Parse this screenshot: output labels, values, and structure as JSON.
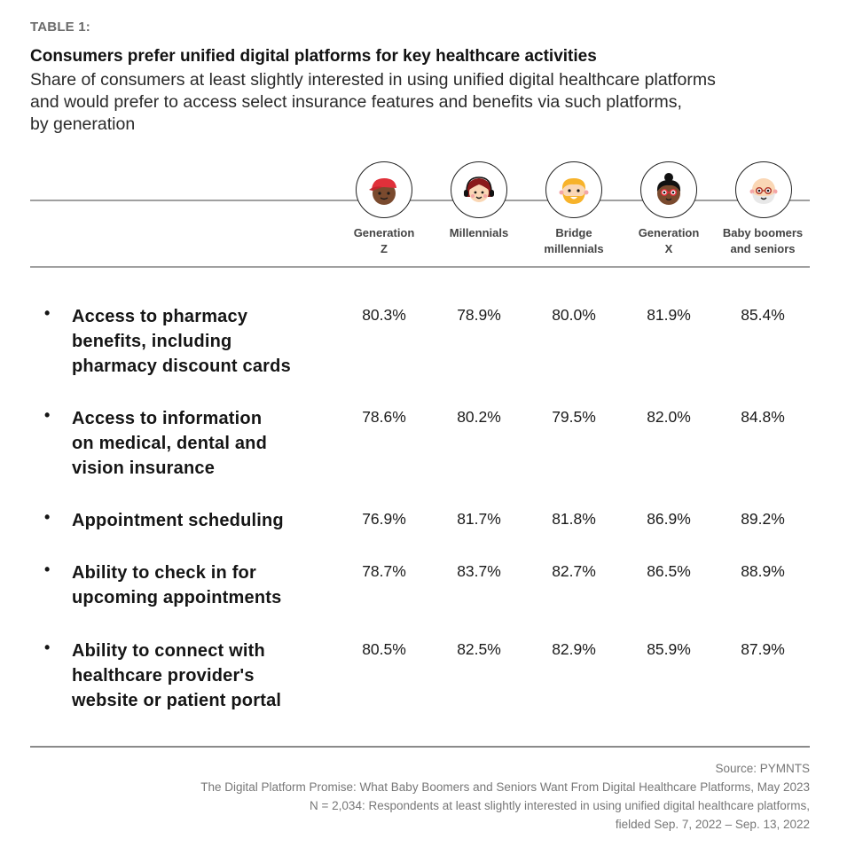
{
  "header": {
    "eyebrow": "TABLE 1:",
    "title": "Consumers prefer unified digital platforms for key healthcare activities",
    "subtitle_lines": [
      "Share of consumers at least slightly interested in using unified digital healthcare platforms",
      "and would prefer to access select insurance features and benefits via such platforms,",
      "by generation"
    ]
  },
  "columns": [
    {
      "label_lines": [
        "Generation",
        "Z"
      ],
      "icon": "gen-z-avatar-icon"
    },
    {
      "label_lines": [
        "Millennials",
        ""
      ],
      "icon": "millennial-avatar-icon"
    },
    {
      "label_lines": [
        "Bridge",
        "millennials"
      ],
      "icon": "bridge-millennial-avatar-icon"
    },
    {
      "label_lines": [
        "Generation",
        "X"
      ],
      "icon": "gen-x-avatar-icon"
    },
    {
      "label_lines": [
        "Baby boomers",
        "and seniors"
      ],
      "icon": "baby-boomer-avatar-icon"
    }
  ],
  "rows": [
    {
      "label_lines": [
        "Access to pharmacy",
        "benefits, including",
        "pharmacy discount cards"
      ],
      "values": [
        "80.3%",
        "78.9%",
        "80.0%",
        "81.9%",
        "85.4%"
      ]
    },
    {
      "label_lines": [
        "Access to information",
        "on medical, dental and",
        "vision insurance"
      ],
      "values": [
        "78.6%",
        "80.2%",
        "79.5%",
        "82.0%",
        "84.8%"
      ]
    },
    {
      "label_lines": [
        "Appointment scheduling"
      ],
      "values": [
        "76.9%",
        "81.7%",
        "81.8%",
        "86.9%",
        "89.2%"
      ]
    },
    {
      "label_lines": [
        "Ability to check in for",
        "upcoming appointments"
      ],
      "values": [
        "78.7%",
        "83.7%",
        "82.7%",
        "86.5%",
        "88.9%"
      ]
    },
    {
      "label_lines": [
        "Ability to connect with",
        "healthcare provider's",
        "website or patient portal"
      ],
      "values": [
        "80.5%",
        "82.5%",
        "82.9%",
        "85.9%",
        "87.9%"
      ]
    }
  ],
  "bullet": "•",
  "footer": {
    "lines": [
      "Source: PYMNTS",
      "The Digital Platform Promise: What Baby Boomers and Seniors Want From Digital Healthcare Platforms, May 2023",
      "N = 2,034: Respondents at least slightly interested in using unified digital healthcare platforms,",
      "fielded Sep. 7, 2022 – Sep. 13, 2022"
    ]
  },
  "colors": {
    "eyebrow": "#6b6b6b",
    "rule": "#a0a0a0",
    "footer_text": "#777777"
  }
}
